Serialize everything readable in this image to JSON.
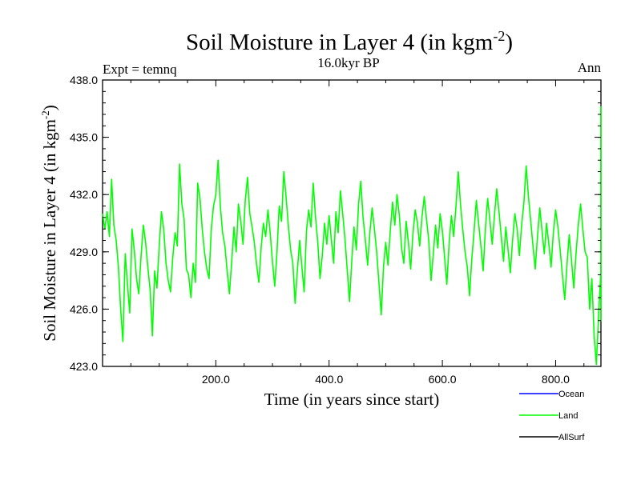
{
  "chart_data": {
    "type": "line",
    "title_main": "Soil Moisture in Layer 4 (in kgm",
    "title_sup": "-2",
    "title_close": ")",
    "subtitle": "16.0kyr BP",
    "left_label": "Expt = temnq",
    "right_label": "Ann",
    "xlabel": "Time (in years since start)",
    "ylabel_main": "Soil Moisture in Layer 4 (in kgm",
    "ylabel_sup": "-2",
    "ylabel_close": ")",
    "xlim": [
      0,
      880
    ],
    "ylim": [
      423.0,
      438.0
    ],
    "x_ticks": [
      200,
      400,
      600,
      800
    ],
    "x_tick_labels": [
      "200.0",
      "400.0",
      "600.0",
      "800.0"
    ],
    "y_ticks": [
      423,
      426,
      429,
      432,
      435,
      438
    ],
    "y_tick_labels": [
      "423.0",
      "426.0",
      "429.0",
      "432.0",
      "435.0",
      "438.0"
    ],
    "legend": [
      {
        "name": "Ocean",
        "color": "#0000ff"
      },
      {
        "name": "Land",
        "color": "#00ff00"
      },
      {
        "name": "AllSurf",
        "color": "#000000"
      }
    ],
    "series": [
      {
        "name": "Land",
        "color": "#00ff00",
        "x_start": 0,
        "x_step": 4,
        "values": [
          431.0,
          430.2,
          431.1,
          429.8,
          432.8,
          430.4,
          429.6,
          428.2,
          426.0,
          424.3,
          428.9,
          427.3,
          425.8,
          430.2,
          429.1,
          427.6,
          426.8,
          428.8,
          430.4,
          429.5,
          428.2,
          427.0,
          424.6,
          428.0,
          427.1,
          429.3,
          431.1,
          430.2,
          428.4,
          427.5,
          426.9,
          428.7,
          430.0,
          429.3,
          433.6,
          431.5,
          430.7,
          428.1,
          427.8,
          426.6,
          428.4,
          427.4,
          432.6,
          431.8,
          430.2,
          429.0,
          428.1,
          427.6,
          430.2,
          431.4,
          432.0,
          433.8,
          431.4,
          430.0,
          429.3,
          428.0,
          426.8,
          428.5,
          430.3,
          429.0,
          431.5,
          430.6,
          429.4,
          431.7,
          432.9,
          431.0,
          430.3,
          429.5,
          428.3,
          427.4,
          429.2,
          430.5,
          429.8,
          431.2,
          430.0,
          428.5,
          427.2,
          429.0,
          431.4,
          430.6,
          433.2,
          431.9,
          430.4,
          429.1,
          428.4,
          426.3,
          428.0,
          429.6,
          428.2,
          426.9,
          430.1,
          431.2,
          430.3,
          432.6,
          430.8,
          429.5,
          427.6,
          428.8,
          430.5,
          429.4,
          430.9,
          429.6,
          428.4,
          431.1,
          430.0,
          432.2,
          431.0,
          429.7,
          428.1,
          426.4,
          428.5,
          430.3,
          429.1,
          431.5,
          432.7,
          430.8,
          429.6,
          428.3,
          430.0,
          431.3,
          430.2,
          429.0,
          427.4,
          425.7,
          428.2,
          429.5,
          428.3,
          430.1,
          431.6,
          430.4,
          432.0,
          430.9,
          429.2,
          428.4,
          430.6,
          429.5,
          428.1,
          429.9,
          431.2,
          430.5,
          429.3,
          430.8,
          431.9,
          430.7,
          429.6,
          427.5,
          428.9,
          430.4,
          429.2,
          431.0,
          430.1,
          428.7,
          427.3,
          429.5,
          430.9,
          429.8,
          431.4,
          433.2,
          431.5,
          430.2,
          429.0,
          428.2,
          426.7,
          428.6,
          430.1,
          431.7,
          430.5,
          429.3,
          428.0,
          430.2,
          431.8,
          430.6,
          429.4,
          430.9,
          432.3,
          431.1,
          429.8,
          428.5,
          430.3,
          429.1,
          427.9,
          429.6,
          431.0,
          430.2,
          428.8,
          430.4,
          431.6,
          433.5,
          431.9,
          430.6,
          429.3,
          428.1,
          429.8,
          431.3,
          430.1,
          428.9,
          430.5,
          429.4,
          428.2,
          430.0,
          431.2,
          430.3,
          429.1,
          427.8,
          426.5,
          428.3,
          429.9,
          428.6,
          427.1,
          428.9,
          430.4,
          431.5,
          430.2,
          429.0,
          428.7,
          426.0,
          427.6,
          424.6,
          423.1,
          425.8,
          428.0,
          429.6,
          428.4,
          430.1,
          429.0,
          427.5,
          426.1,
          428.3,
          430.0,
          428.8,
          430.7,
          429.6,
          428.3,
          430.2,
          431.4,
          430.3,
          429.1,
          427.9,
          429.5,
          431.0,
          429.7,
          428.4,
          430.1,
          431.8,
          430.5,
          429.3,
          428.1,
          429.9,
          431.3,
          430.4,
          429.2,
          430.6,
          432.0,
          431.0,
          429.8,
          428.6,
          430.3,
          431.7,
          430.6,
          432.6,
          433.4,
          434.5,
          432.9,
          431.5,
          430.2,
          429.1,
          431.0,
          432.8,
          434.1,
          436.6,
          433.5,
          431.8,
          430.5,
          429.4,
          431.2,
          430.0,
          428.7,
          430.4,
          429.3,
          428.1,
          429.9,
          431.2,
          430.1,
          428.2,
          429.6,
          428.0,
          425.4,
          427.3,
          429.1,
          430.5,
          429.4,
          432.2,
          431.3,
          426.0,
          428.5
        ]
      }
    ]
  }
}
